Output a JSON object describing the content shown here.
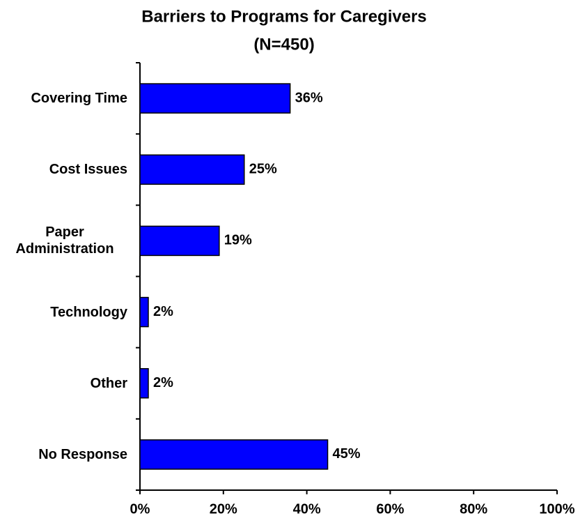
{
  "chart_data": {
    "type": "hbar",
    "title": "Barriers to Programs for Caregivers",
    "subtitle": "(N=450)",
    "categories": [
      "Covering Time",
      "Cost Issues",
      "Paper Administration",
      "Technology",
      "Other",
      "No Response"
    ],
    "values": [
      36,
      25,
      19,
      2,
      2,
      45
    ],
    "value_labels": [
      "36%",
      "25%",
      "19%",
      "2%",
      "2%",
      "45%"
    ],
    "color": "#0000ff",
    "xlim": [
      0,
      100
    ],
    "xticks": [
      {
        "value": 0,
        "label": "0%"
      },
      {
        "value": 20,
        "label": "20%"
      },
      {
        "value": 40,
        "label": "40%"
      },
      {
        "value": 60,
        "label": "60%"
      },
      {
        "value": 80,
        "label": "80%"
      },
      {
        "value": 100,
        "label": "100%"
      }
    ]
  }
}
